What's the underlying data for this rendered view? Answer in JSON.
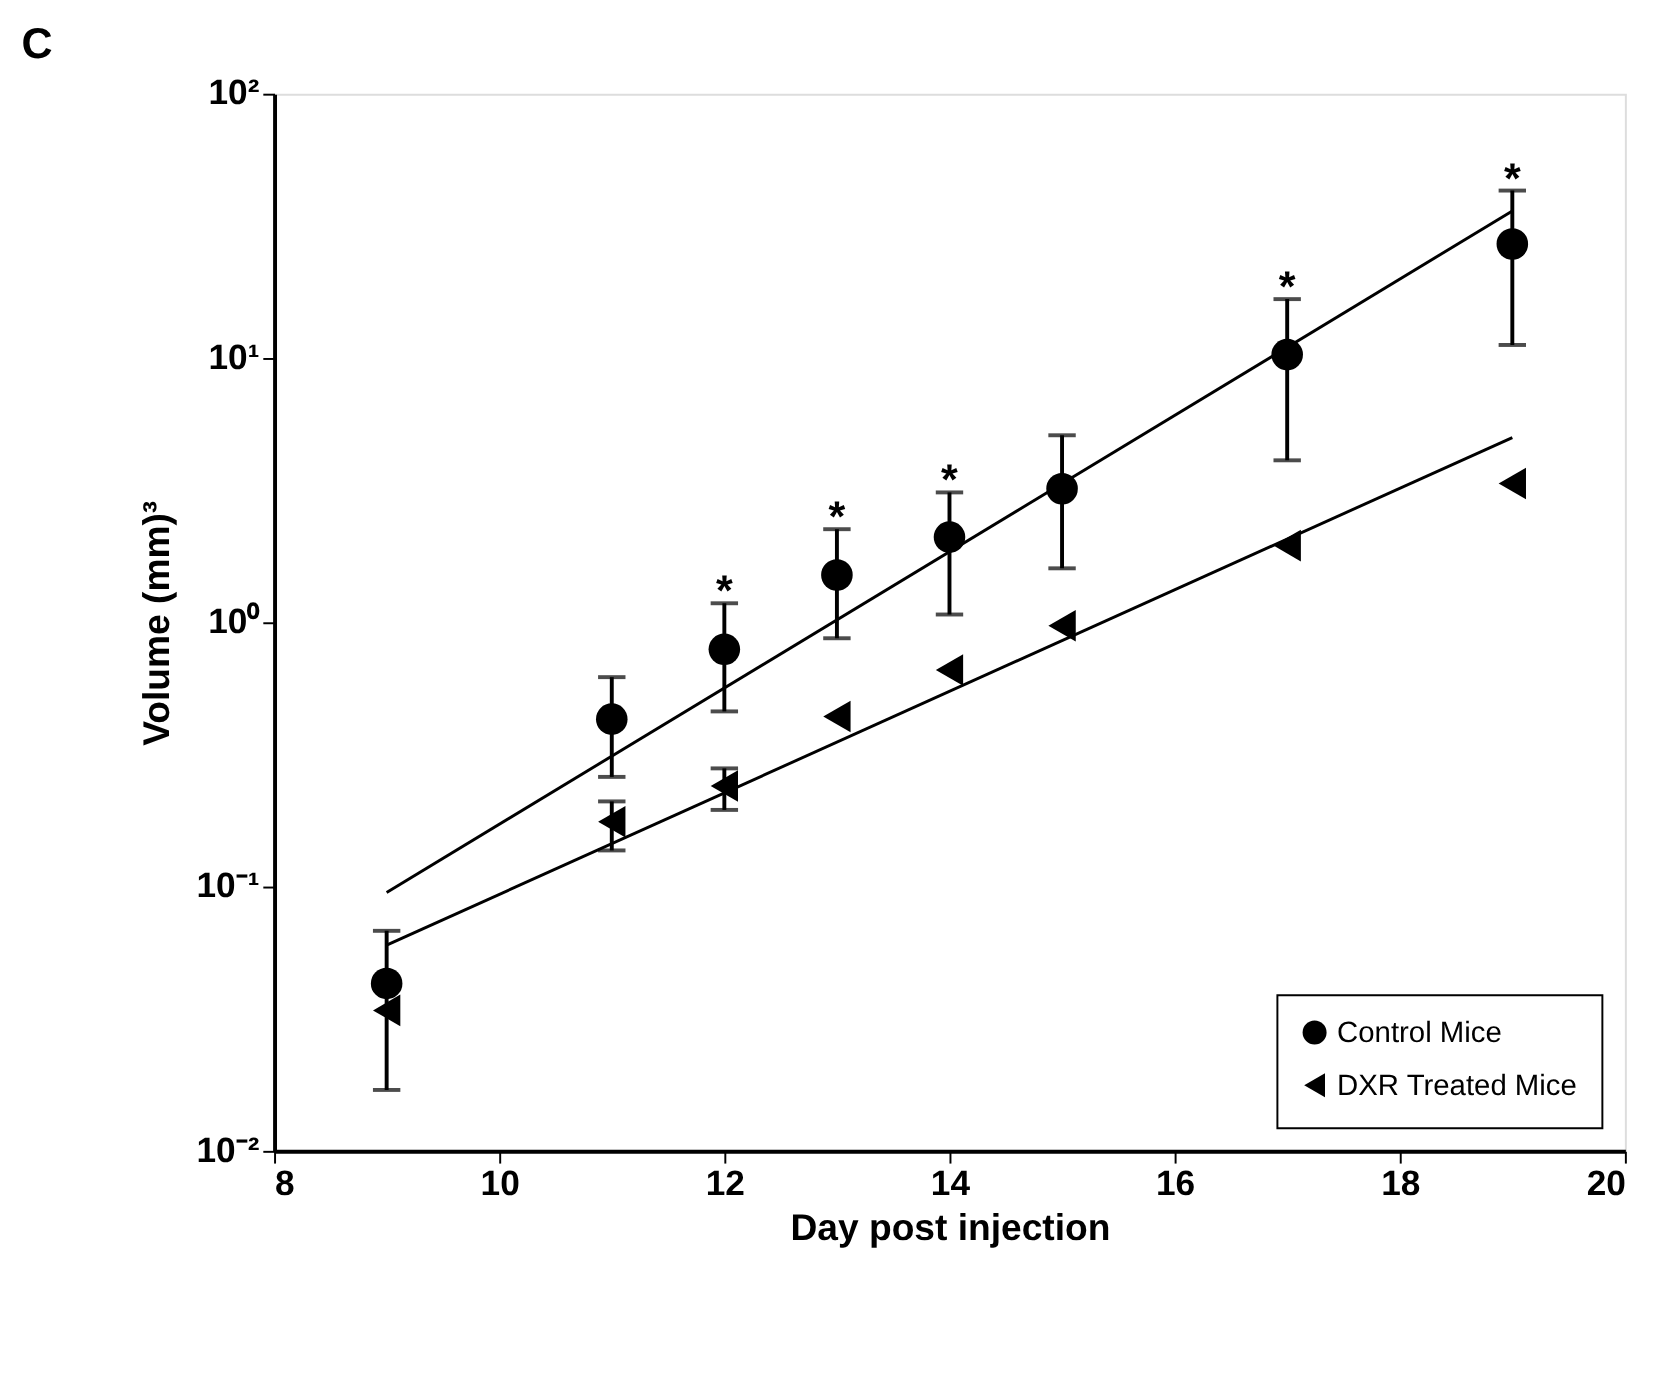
{
  "chart_data": {
    "type": "scatter",
    "title": "C",
    "xlabel": "Day post injection",
    "ylabel": "Volume (mm)³",
    "log": "y",
    "xlim": [
      8,
      20
    ],
    "xticks": [
      8,
      10,
      12,
      14,
      16,
      18,
      20
    ],
    "ylim": [
      0.01,
      100
    ],
    "yticks": [
      {
        "value": 0.01,
        "label": "10⁻²"
      },
      {
        "value": 0.1,
        "label": "10⁻¹"
      },
      {
        "value": 1,
        "label": "10⁰"
      },
      {
        "value": 10,
        "label": "10¹"
      },
      {
        "value": 100,
        "label": "10²"
      }
    ],
    "legend": "bottom right",
    "grid": false,
    "x": [
      9,
      11,
      12,
      13,
      14,
      15,
      17,
      19
    ],
    "series": [
      {
        "name": "Control Mice",
        "type": "scatter",
        "marker": "circle",
        "color": "#000000",
        "values": [
          0.043,
          0.43,
          0.79,
          1.51,
          2.1,
          3.2,
          10.3,
          27
        ],
        "value_labels": [
          null,
          null,
          "*",
          "*",
          "*",
          null,
          "*",
          "*"
        ],
        "errors": [
          [
            0.017,
            0.068
          ],
          [
            0.26,
            0.62
          ],
          [
            0.46,
            1.18
          ],
          [
            0.87,
            2.25
          ],
          [
            1.07,
            3.1
          ],
          [
            1.6,
            5.1
          ],
          [
            4.1,
            16.7
          ],
          [
            11.2,
            43
          ]
        ]
      },
      {
        "name": "DXR Treated Mice",
        "marker": "triangle",
        "color": "#000000",
        "values": [
          0.034,
          0.176,
          0.24,
          0.44,
          0.66,
          0.97,
          1.95,
          3.35
        ],
        "errors": [
          null,
          [
            0.137,
            0.21
          ],
          [
            0.195,
            0.28
          ],
          null,
          null,
          null,
          null,
          null
        ]
      },
      {
        "type": "line",
        "color": "#000000",
        "values": [
          0.095,
          null,
          null,
          null,
          null,
          null,
          null,
          36
        ]
      },
      {
        "type": "line",
        "color": "#000000",
        "values": [
          0.06,
          null,
          null,
          null,
          null,
          null,
          null,
          5.0
        ]
      }
    ]
  }
}
